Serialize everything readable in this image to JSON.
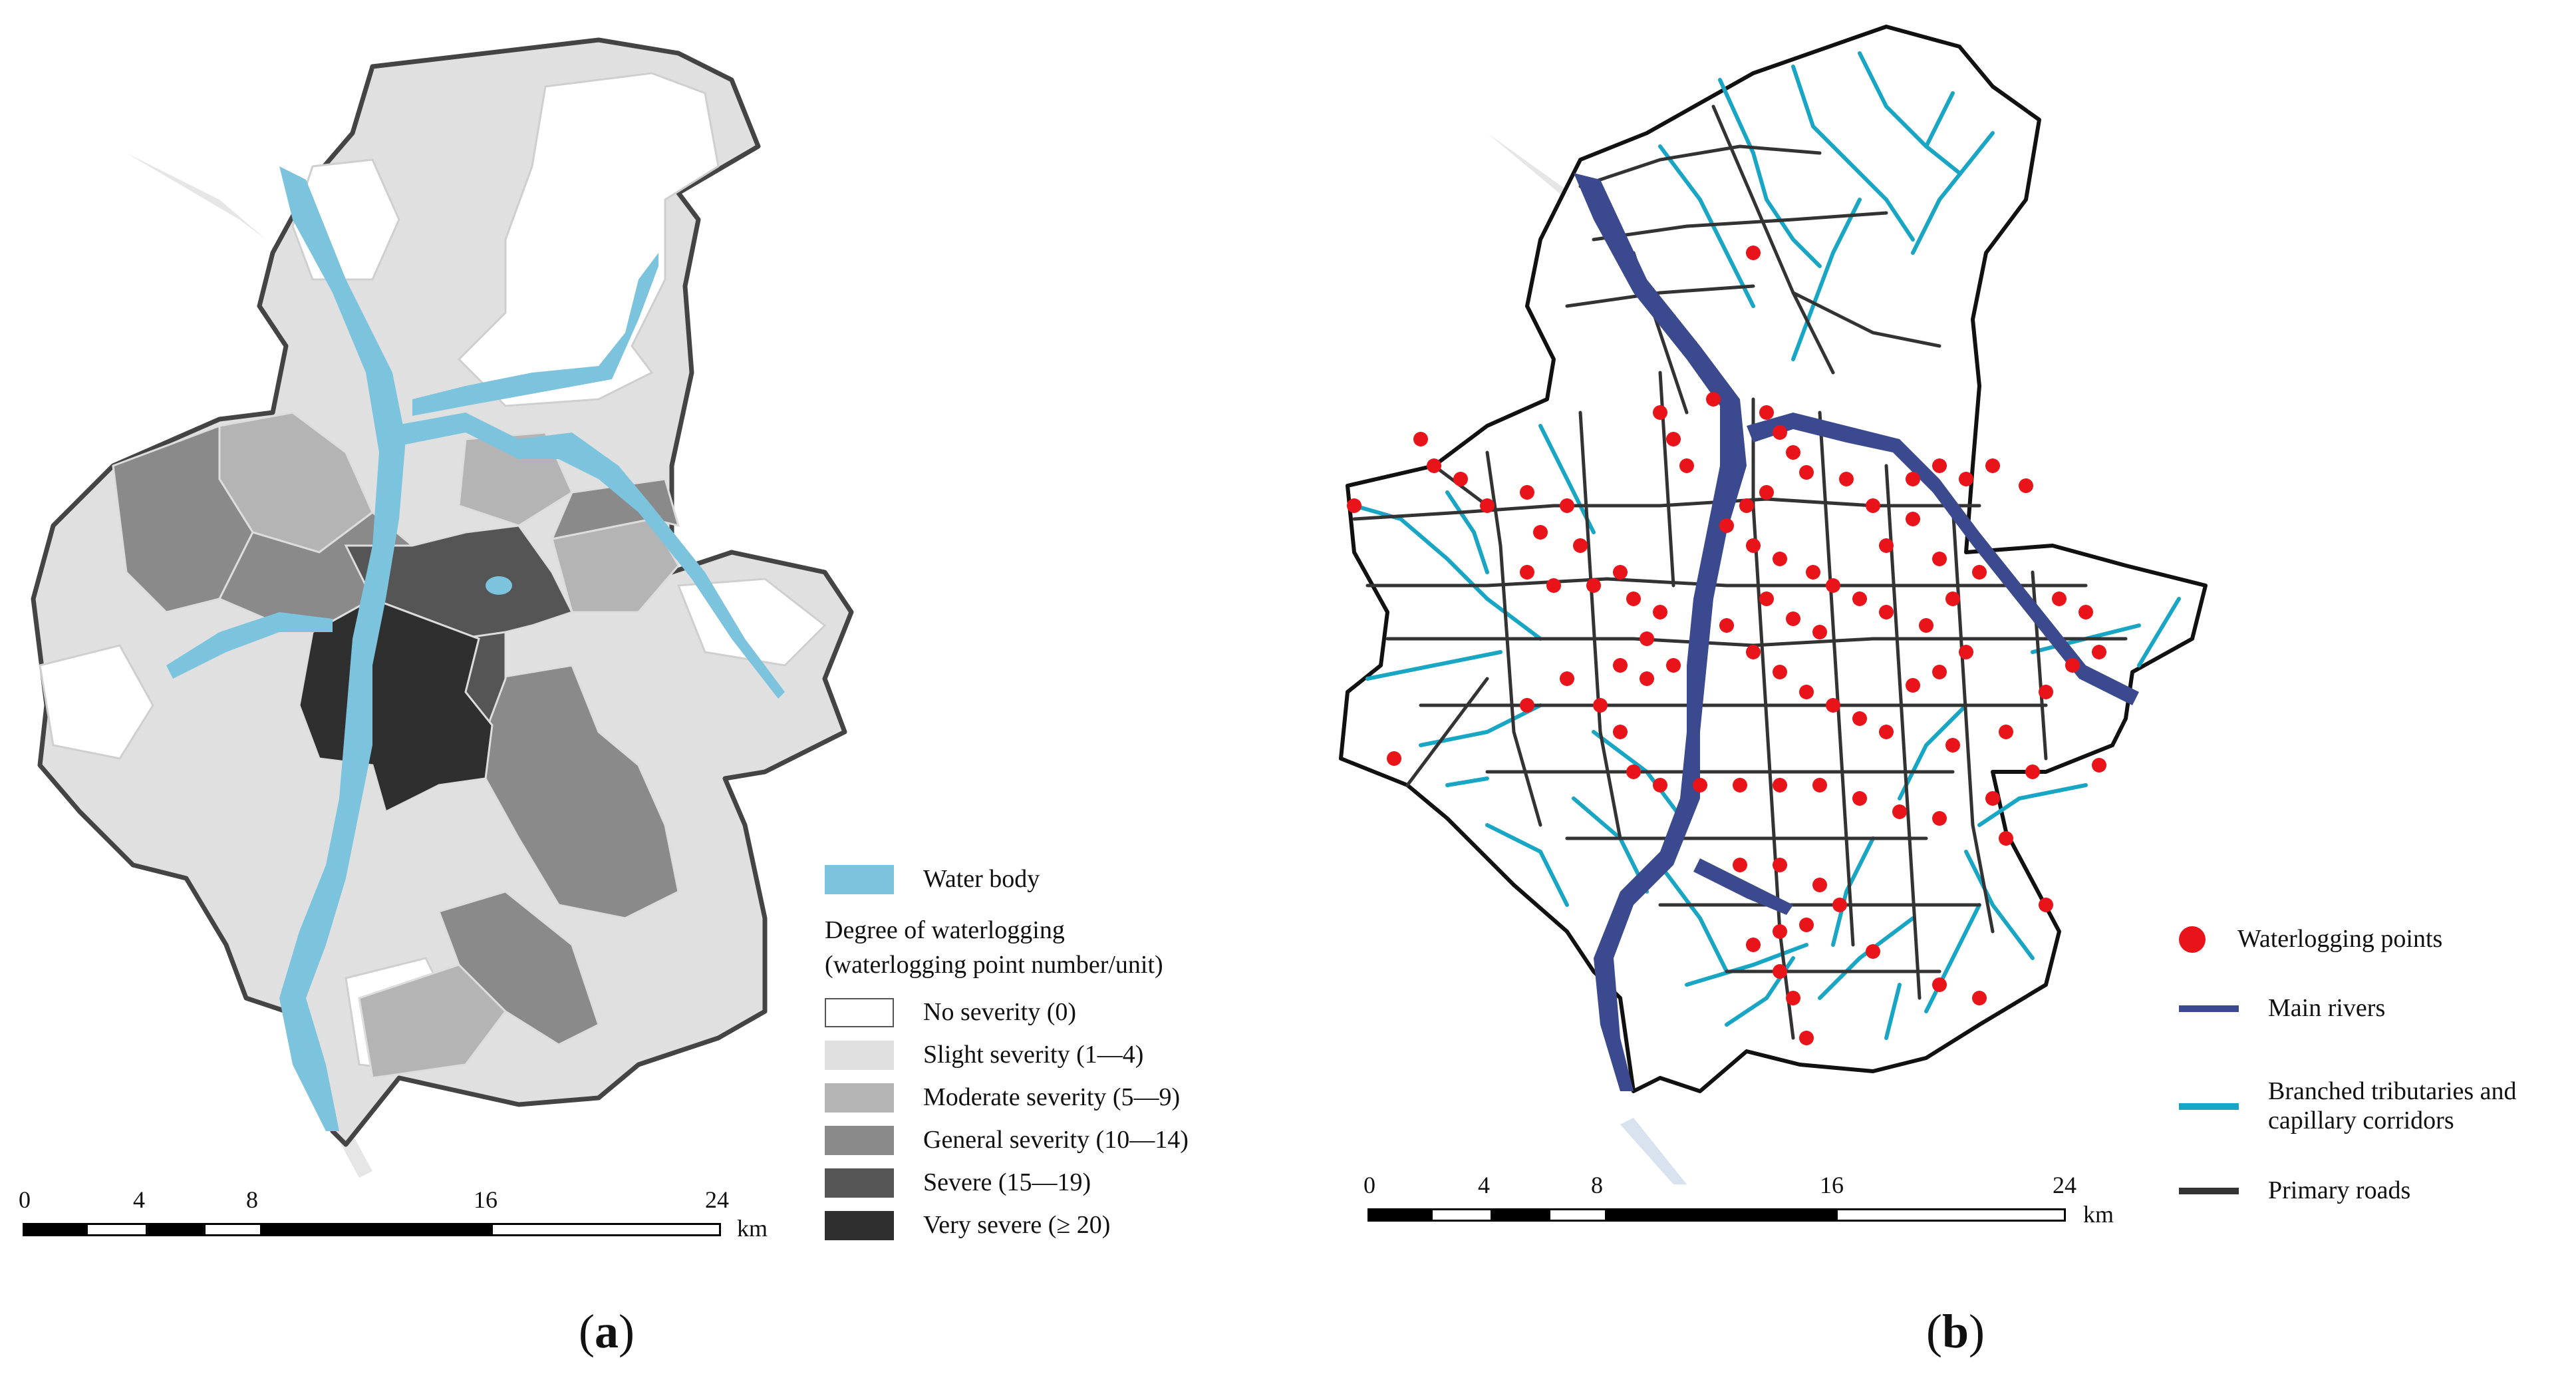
{
  "panel_a": {
    "label_letter": "a",
    "legend": {
      "water_body": "Water body",
      "title_line1": "Degree of waterlogging",
      "title_line2": "(waterlogging point number/unit)",
      "classes": [
        {
          "label": "No severity (0)",
          "color": "#ffffff"
        },
        {
          "label": "Slight severity (1—4)",
          "color": "#e0e0e0"
        },
        {
          "label": "Moderate severity (5—9)",
          "color": "#b4b4b4"
        },
        {
          "label": "General severity (10—14)",
          "color": "#8a8a8a"
        },
        {
          "label": "Severe (15—19)",
          "color": "#555555"
        },
        {
          "label": "Very severe (≥ 20)",
          "color": "#2f2f2f"
        }
      ],
      "water_color": "#7cc3dd"
    },
    "scale": {
      "ticks": [
        "0",
        "4",
        "8",
        "16",
        "24"
      ],
      "unit": "km"
    }
  },
  "panel_b": {
    "label_letter": "b",
    "legend": {
      "points": "Waterlogging points",
      "main_rivers": "Main rivers",
      "tributaries_line1": "Branched tributaries and",
      "tributaries_line2": "capillary corridors",
      "roads": "Primary roads",
      "point_color": "#e8141a",
      "river_color": "#3b4a8f",
      "tributary_color": "#18a6c4",
      "road_color": "#333333"
    },
    "scale": {
      "ticks": [
        "0",
        "4",
        "8",
        "16",
        "24"
      ],
      "unit": "km"
    }
  }
}
